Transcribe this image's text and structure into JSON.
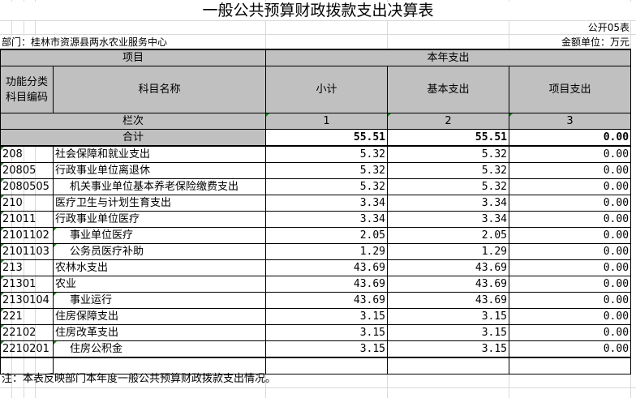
{
  "title": "一般公共预算财政拨款支出决算表",
  "form_code": "公开05表",
  "department": "部门：桂林市资源县两水农业服务中心",
  "unit": "金额单位：万元",
  "header": {
    "item": "项目",
    "current_year": "本年支出",
    "code": "功能分类科目编码",
    "name": "科目名称",
    "subtotal": "小计",
    "basic": "基本支出",
    "project": "项目支出",
    "column_label": "栏次",
    "col1": "1",
    "col2": "2",
    "col3": "3"
  },
  "total": {
    "label": "合计",
    "subtotal": "55.51",
    "basic": "55.51",
    "project": "0.00"
  },
  "rows": [
    {
      "code": "208",
      "name": "社会保障和就业支出",
      "subtotal": "5.32",
      "basic": "5.32",
      "project": "0.00"
    },
    {
      "code": "20805",
      "name": "行政事业单位离退休",
      "subtotal": "5.32",
      "basic": "5.32",
      "project": "0.00"
    },
    {
      "code": "2080505",
      "name": "机关事业单位基本养老保险缴费支出",
      "subtotal": "5.32",
      "basic": "5.32",
      "project": "0.00"
    },
    {
      "code": "210",
      "name": "医疗卫生与计划生育支出",
      "subtotal": "3.34",
      "basic": "3.34",
      "project": "0.00"
    },
    {
      "code": "21011",
      "name": "行政事业单位医疗",
      "subtotal": "3.34",
      "basic": "3.34",
      "project": "0.00"
    },
    {
      "code": "2101102",
      "name": "事业单位医疗",
      "subtotal": "2.05",
      "basic": "2.05",
      "project": "0.00"
    },
    {
      "code": "2101103",
      "name": "公务员医疗补助",
      "subtotal": "1.29",
      "basic": "1.29",
      "project": "0.00"
    },
    {
      "code": "213",
      "name": "农林水支出",
      "subtotal": "43.69",
      "basic": "43.69",
      "project": "0.00"
    },
    {
      "code": "21301",
      "name": "农业",
      "subtotal": "43.69",
      "basic": "43.69",
      "project": "0.00"
    },
    {
      "code": "2130104",
      "name": "事业运行",
      "subtotal": "43.69",
      "basic": "43.69",
      "project": "0.00"
    },
    {
      "code": "221",
      "name": "住房保障支出",
      "subtotal": "3.15",
      "basic": "3.15",
      "project": "0.00"
    },
    {
      "code": "22102",
      "name": "住房改革支出",
      "subtotal": "3.15",
      "basic": "3.15",
      "project": "0.00"
    },
    {
      "code": "2210201",
      "name": "住房公积金",
      "subtotal": "3.15",
      "basic": "3.15",
      "project": "0.00"
    }
  ],
  "note": "注：本表反映部门本年度一般公共预算财政拨款支出情况。"
}
